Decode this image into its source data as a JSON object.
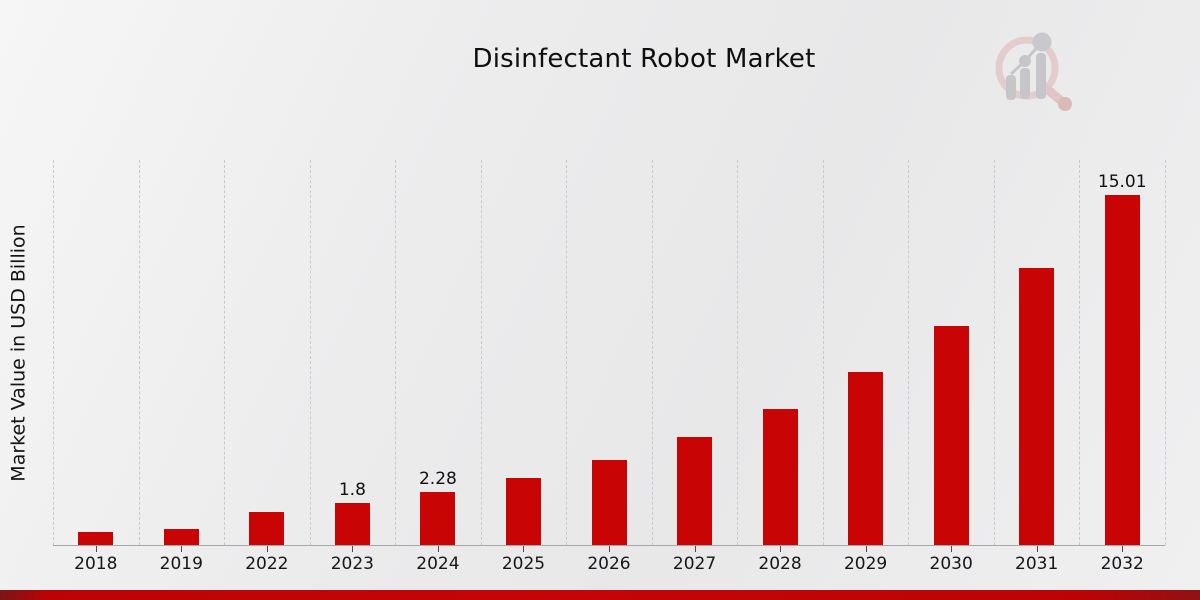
{
  "page": {
    "background_color": "#ececed",
    "bottom_accent_color": "#c50406"
  },
  "chart_data": {
    "type": "bar",
    "title": "Disinfectant Robot Market",
    "xlabel": "",
    "ylabel": "Market Value in USD Billion",
    "categories": [
      "2018",
      "2019",
      "2022",
      "2023",
      "2024",
      "2025",
      "2026",
      "2027",
      "2028",
      "2029",
      "2030",
      "2031",
      "2032"
    ],
    "values": [
      0.55,
      0.7,
      1.42,
      1.8,
      2.28,
      2.89,
      3.65,
      4.62,
      5.85,
      7.41,
      9.38,
      11.87,
      15.01
    ],
    "point_labels": [
      "",
      "",
      "",
      "1.8",
      "2.28",
      "",
      "",
      "",
      "",
      "",
      "",
      "",
      "15.01"
    ],
    "ylim": [
      0,
      16.5
    ],
    "bar_color": "#c80404",
    "grid": "vertical-dashed",
    "legend": "none"
  }
}
